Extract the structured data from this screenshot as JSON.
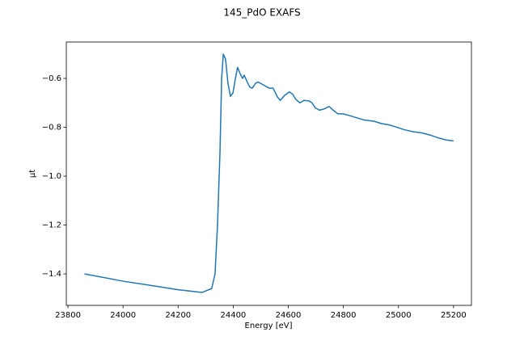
{
  "chart_data": {
    "type": "line",
    "title": "145_PdO EXAFS",
    "x_label": "Energy [eV]",
    "y_label": "μt",
    "x": [
      23860,
      24000,
      24100,
      24200,
      24287,
      24322,
      24334,
      24343,
      24352,
      24358,
      24364,
      24372,
      24381,
      24390,
      24399,
      24408,
      24416,
      24425,
      24434,
      24440,
      24449,
      24460,
      24469,
      24481,
      24490,
      24507,
      24531,
      24545,
      24560,
      24571,
      24586,
      24604,
      24616,
      24627,
      24642,
      24657,
      24675,
      24686,
      24698,
      24713,
      24730,
      24748,
      24763,
      24780,
      24798,
      24816,
      24845,
      24874,
      24910,
      24939,
      24965,
      24995,
      25021,
      25053,
      25085,
      25115,
      25144,
      25173,
      25200
    ],
    "series": [
      {
        "name": "145_PdO",
        "color": "#1f77b4",
        "values": [
          -1.4,
          -1.43,
          -1.447,
          -1.465,
          -1.476,
          -1.46,
          -1.4,
          -1.2,
          -0.9,
          -0.6,
          -0.501,
          -0.52,
          -0.62,
          -0.673,
          -0.66,
          -0.6,
          -0.555,
          -0.58,
          -0.6,
          -0.587,
          -0.61,
          -0.635,
          -0.64,
          -0.62,
          -0.615,
          -0.625,
          -0.64,
          -0.64,
          -0.675,
          -0.69,
          -0.67,
          -0.655,
          -0.665,
          -0.685,
          -0.7,
          -0.69,
          -0.692,
          -0.7,
          -0.72,
          -0.73,
          -0.725,
          -0.715,
          -0.73,
          -0.745,
          -0.745,
          -0.75,
          -0.76,
          -0.77,
          -0.775,
          -0.785,
          -0.79,
          -0.8,
          -0.81,
          -0.818,
          -0.823,
          -0.832,
          -0.843,
          -0.852,
          -0.856
        ]
      }
    ],
    "xlim": [
      23794,
      25265
    ],
    "ylim": [
      -1.529,
      -0.451
    ],
    "xticks": [
      23800,
      24000,
      24200,
      24400,
      24600,
      24800,
      25000,
      25200
    ],
    "yticks": [
      {
        "value": -1.4,
        "label": "−1.4"
      },
      {
        "value": -1.2,
        "label": "−1.2"
      },
      {
        "value": -1.0,
        "label": "−1.0"
      },
      {
        "value": -0.8,
        "label": "−0.8"
      },
      {
        "value": -0.6,
        "label": "−0.6"
      }
    ]
  }
}
